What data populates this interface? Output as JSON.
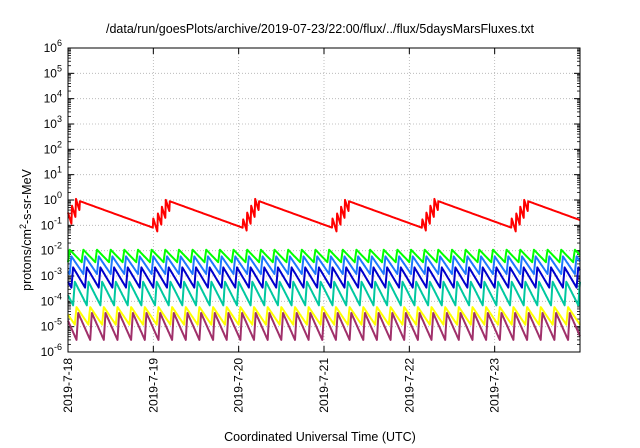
{
  "chart_data": {
    "type": "line",
    "title": "/data/run/goesPlots/archive/2019-07-23/22:00/flux/../flux/5daysMarsFluxes.txt",
    "xlabel": "Coordinated Universal Time (UTC)",
    "ylabel": {
      "prefix": "protons/cm",
      "sup": "2",
      "suffix": "-s-sr-MeV"
    },
    "xlim": [
      "2019-07-18T00:00",
      "2019-07-24T00:00"
    ],
    "x_ticks": [
      "2019-7-18",
      "2019-7-19",
      "2019-7-20",
      "2019-7-21",
      "2019-7-22",
      "2019-7-23"
    ],
    "y_scale": "log",
    "ylim": [
      1e-06,
      1000000.0
    ],
    "y_ticks": [
      {
        "base": "10",
        "exp": "-6",
        "value": 1e-06
      },
      {
        "base": "10",
        "exp": "-5",
        "value": 1e-05
      },
      {
        "base": "10",
        "exp": "-4",
        "value": 0.0001
      },
      {
        "base": "10",
        "exp": "-3",
        "value": 0.001
      },
      {
        "base": "10",
        "exp": "-2",
        "value": 0.01
      },
      {
        "base": "10",
        "exp": "-1",
        "value": 0.1
      },
      {
        "base": "10",
        "exp": "0",
        "value": 1.0
      },
      {
        "base": "10",
        "exp": "1",
        "value": 10.0
      },
      {
        "base": "10",
        "exp": "2",
        "value": 100.0
      },
      {
        "base": "10",
        "exp": "3",
        "value": 1000.0
      },
      {
        "base": "10",
        "exp": "4",
        "value": 10000.0
      },
      {
        "base": "10",
        "exp": "5",
        "value": 100000.0
      },
      {
        "base": "10",
        "exp": "6",
        "value": 1000000.0
      }
    ],
    "grid": true,
    "series": [
      {
        "color": "#ff0000",
        "period_days": 1.05,
        "peak": 0.9,
        "trough": 0.08,
        "phase_days": -0.05
      },
      {
        "color": "#00ff00",
        "period_days": 0.16,
        "peak": 0.011,
        "trough": 0.0035,
        "phase_days": 0.0
      },
      {
        "color": "#1f77ff",
        "period_days": 0.16,
        "peak": 0.006,
        "trough": 0.0012,
        "phase_days": 0.02
      },
      {
        "color": "#0000cc",
        "period_days": 0.16,
        "peak": 0.0022,
        "trough": 0.00035,
        "phase_days": 0.04
      },
      {
        "color": "#00c8a0",
        "period_days": 0.16,
        "peak": 0.0006,
        "trough": 7e-05,
        "phase_days": 0.06
      },
      {
        "color": "#ffff00",
        "period_days": 0.16,
        "peak": 6e-05,
        "trough": 1.2e-05,
        "phase_days": 0.08
      },
      {
        "color": "#a0306a",
        "period_days": 0.16,
        "peak": 3.5e-05,
        "trough": 3e-06,
        "phase_days": 0.1
      }
    ]
  }
}
